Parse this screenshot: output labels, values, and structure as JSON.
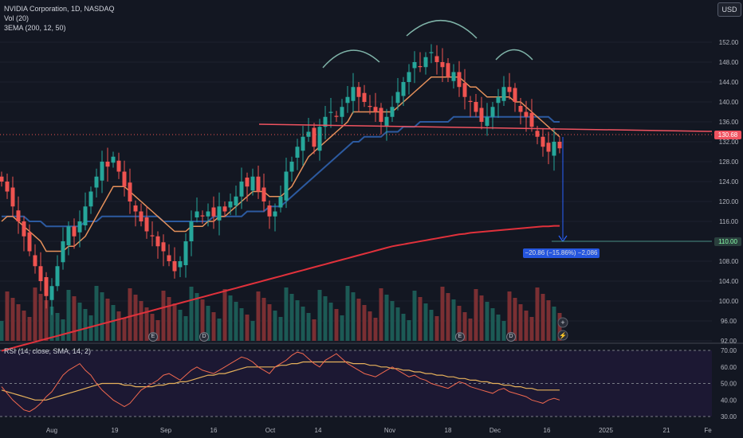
{
  "legend": {
    "symbol": "NVIDIA Corporation, 1D, NASDAQ",
    "vol": "Vol (20)",
    "ema": "3EMA (200, 12, 50)"
  },
  "rsi_legend": "RSI (14, close, SMA, 14, 2)",
  "currency_button": "USD",
  "measure_label": "−20.86 (−15.86%) −2,086",
  "last_price": "130.68",
  "target_price": "110.00",
  "event_markers": [
    {
      "label": "E"
    },
    {
      "label": "D"
    },
    {
      "label": "E"
    },
    {
      "label": "D"
    }
  ],
  "colors": {
    "background": "#131722",
    "up": "#26a69a",
    "down": "#ef5350",
    "ema12": "#e6915b",
    "ema50": "#2c5aa0",
    "ema200": "#e0313b",
    "neckline": "#f05360",
    "measure": "#2962ff",
    "rsi": "#f0684f",
    "rsi_ma": "#e6b15b"
  },
  "chart_data": [
    {
      "type": "candlestick",
      "title": "NVIDIA Corporation, 1D, NASDAQ",
      "ylim": [
        92,
        156
      ],
      "y_ticks": [
        "152.00",
        "148.00",
        "144.00",
        "140.00",
        "136.00",
        "132.00",
        "128.00",
        "124.00",
        "120.00",
        "116.00",
        "112.00",
        "108.00",
        "104.00",
        "100.00",
        "96.00",
        "92.00"
      ],
      "x_ticks": [
        "Aug",
        "19",
        "Sep",
        "16",
        "Oct",
        "14",
        "Nov",
        "18",
        "Dec",
        "16",
        "2025",
        "21",
        "Fe"
      ],
      "close_series": [
        124,
        122,
        119,
        116,
        113,
        110,
        107,
        104,
        101,
        103,
        107,
        112,
        115,
        113,
        116,
        119,
        122,
        125,
        128,
        127,
        129,
        126,
        123,
        120,
        118,
        116,
        114,
        113,
        111,
        110,
        108,
        106,
        108,
        112,
        116,
        118,
        117,
        118,
        117,
        119,
        118,
        120,
        121,
        124,
        123,
        125,
        122,
        120,
        117,
        118,
        121,
        126,
        128,
        131,
        133,
        134,
        131,
        135,
        137,
        138,
        137,
        139,
        141,
        143,
        141,
        140,
        139,
        138,
        136,
        137,
        139,
        142,
        144,
        146,
        148,
        147,
        149,
        150,
        148,
        147,
        145,
        146,
        143,
        141,
        140,
        138,
        136,
        137,
        139,
        141,
        143,
        142,
        140,
        138,
        137,
        135,
        133,
        131,
        130,
        132,
        130.68
      ],
      "ema12": [
        116,
        117,
        117,
        116,
        115,
        114,
        113,
        112,
        110,
        110,
        110,
        110,
        111,
        111,
        112,
        113,
        115,
        117,
        119,
        121,
        123,
        123,
        123,
        122,
        121,
        120,
        119,
        118,
        117,
        116,
        115,
        114,
        114,
        114,
        115,
        115,
        115,
        116,
        116,
        117,
        117,
        118,
        119,
        120,
        121,
        122,
        122,
        122,
        121,
        121,
        121,
        122,
        123,
        125,
        127,
        129,
        130,
        131,
        132,
        133,
        134,
        135,
        136,
        138,
        138,
        138,
        138,
        138,
        138,
        138,
        138,
        139,
        140,
        141,
        142,
        143,
        144,
        145,
        145,
        145,
        145,
        145,
        145,
        144,
        143,
        143,
        142,
        141,
        141,
        141,
        141,
        141,
        140,
        140,
        139,
        138,
        137,
        136,
        135,
        134,
        133
      ],
      "ema50": [
        117,
        117,
        117,
        117,
        117,
        116,
        116,
        116,
        115,
        115,
        115,
        115,
        115,
        115,
        115,
        116,
        116,
        116,
        117,
        117,
        117,
        117,
        117,
        117,
        117,
        117,
        117,
        117,
        117,
        116,
        116,
        116,
        116,
        116,
        116,
        116,
        116,
        116,
        117,
        117,
        117,
        117,
        117,
        117,
        118,
        118,
        118,
        118,
        119,
        119,
        119,
        120,
        121,
        122,
        123,
        124,
        125,
        126,
        127,
        128,
        129,
        130,
        131,
        132,
        132,
        133,
        133,
        133,
        133,
        134,
        134,
        134,
        135,
        135,
        135,
        136,
        136,
        136,
        136,
        136,
        136,
        137,
        137,
        137,
        137,
        137,
        137,
        137,
        137,
        137,
        137,
        137,
        137,
        137,
        137,
        137,
        137,
        137,
        137,
        136,
        136
      ],
      "ema200": [
        90,
        90.3,
        90.6,
        90.9,
        91.2,
        91.5,
        91.8,
        92.1,
        92.4,
        92.7,
        93,
        93.3,
        93.6,
        93.9,
        94.2,
        94.5,
        94.8,
        95.1,
        95.4,
        95.7,
        96,
        96.3,
        96.6,
        96.9,
        97.2,
        97.5,
        97.8,
        98.1,
        98.4,
        98.7,
        99,
        99.3,
        99.6,
        99.9,
        100.2,
        100.5,
        100.8,
        101.1,
        101.4,
        101.7,
        102,
        102.3,
        102.6,
        102.9,
        103.2,
        103.5,
        103.8,
        104.1,
        104.4,
        104.7,
        105,
        105.3,
        105.6,
        105.9,
        106.2,
        106.5,
        106.8,
        107.1,
        107.4,
        107.7,
        108,
        108.3,
        108.6,
        108.9,
        109.2,
        109.5,
        109.8,
        110.1,
        110.4,
        110.7,
        111,
        111.2,
        111.4,
        111.6,
        111.8,
        112,
        112.2,
        112.4,
        112.6,
        112.8,
        113,
        113.2,
        113.4,
        113.5,
        113.7,
        113.8,
        113.9,
        114,
        114.1,
        114.2,
        114.3,
        114.4,
        114.5,
        114.6,
        114.7,
        114.8,
        114.9,
        115,
        115,
        115.1,
        115.1
      ]
    },
    {
      "type": "line",
      "title": "RSI (14, close, SMA, 14, 2)",
      "ylim": [
        30,
        70
      ],
      "y_ticks": [
        "70.00",
        "60.00",
        "50.00",
        "40.00",
        "30.00"
      ],
      "rsi": [
        48,
        44,
        40,
        37,
        34,
        33,
        35,
        38,
        42,
        45,
        50,
        55,
        58,
        60,
        62,
        58,
        55,
        50,
        46,
        43,
        40,
        38,
        36,
        38,
        42,
        46,
        48,
        50,
        52,
        55,
        56,
        54,
        52,
        55,
        58,
        60,
        58,
        57,
        56,
        58,
        60,
        62,
        64,
        66,
        65,
        63,
        60,
        58,
        56,
        60,
        62,
        64,
        67,
        69,
        68,
        65,
        62,
        60,
        64,
        66,
        68,
        65,
        62,
        60,
        58,
        56,
        55,
        54,
        56,
        58,
        60,
        58,
        56,
        54,
        55,
        53,
        52,
        50,
        49,
        48,
        47,
        49,
        51,
        50,
        48,
        47,
        46,
        45,
        44,
        46,
        47,
        45,
        44,
        43,
        42,
        40,
        39,
        38,
        40,
        41,
        40
      ],
      "rsi_ma": [
        46,
        45,
        44,
        43,
        42,
        41,
        40,
        40,
        40,
        41,
        42,
        43,
        44,
        45,
        46,
        47,
        48,
        49,
        50,
        50,
        50,
        50,
        49,
        49,
        48,
        48,
        48,
        48,
        49,
        49,
        50,
        50,
        51,
        51,
        52,
        53,
        54,
        55,
        55,
        56,
        56,
        57,
        58,
        59,
        60,
        60,
        60,
        60,
        60,
        60,
        61,
        61,
        62,
        62,
        63,
        63,
        63,
        63,
        63,
        63,
        63,
        63,
        63,
        62,
        62,
        62,
        61,
        61,
        60,
        60,
        59,
        59,
        58,
        58,
        57,
        57,
        56,
        56,
        55,
        55,
        54,
        54,
        53,
        53,
        52,
        52,
        51,
        51,
        50,
        50,
        49,
        49,
        48,
        48,
        47,
        47,
        46,
        46,
        46,
        46,
        46
      ]
    }
  ]
}
